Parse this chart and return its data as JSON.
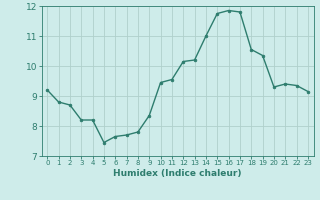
{
  "x": [
    0,
    1,
    2,
    3,
    4,
    5,
    6,
    7,
    8,
    9,
    10,
    11,
    12,
    13,
    14,
    15,
    16,
    17,
    18,
    19,
    20,
    21,
    22,
    23
  ],
  "y": [
    9.2,
    8.8,
    8.7,
    8.2,
    8.2,
    7.45,
    7.65,
    7.7,
    7.8,
    8.35,
    9.45,
    9.55,
    10.15,
    10.2,
    11.0,
    11.75,
    11.85,
    11.8,
    10.55,
    10.35,
    9.3,
    9.4,
    9.35,
    9.15
  ],
  "line_color": "#2e7d6e",
  "bg_color": "#ceecea",
  "grid_color": "#b0d0cc",
  "xlabel": "Humidex (Indice chaleur)",
  "ylim": [
    7,
    12
  ],
  "xlim": [
    -0.5,
    23.5
  ],
  "yticks": [
    7,
    8,
    9,
    10,
    11,
    12
  ],
  "xticks": [
    0,
    1,
    2,
    3,
    4,
    5,
    6,
    7,
    8,
    9,
    10,
    11,
    12,
    13,
    14,
    15,
    16,
    17,
    18,
    19,
    20,
    21,
    22,
    23
  ],
  "tick_color": "#2e7d6e",
  "label_color": "#2e7d6e",
  "marker_size": 2.0,
  "line_width": 1.0,
  "xlabel_fontsize": 6.5,
  "xtick_fontsize": 5.0,
  "ytick_fontsize": 6.5
}
